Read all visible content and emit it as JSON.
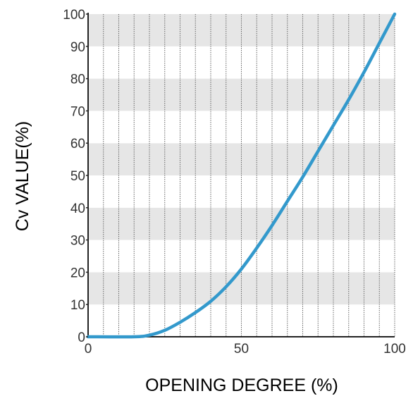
{
  "chart_data": {
    "type": "line",
    "title": "",
    "xlabel": "OPENING DEGREE (%)",
    "ylabel": "Cv VALUE(%)",
    "xlim": [
      0,
      100
    ],
    "ylim": [
      0,
      100
    ],
    "x_ticks": [
      "0",
      "50",
      "100"
    ],
    "y_ticks": [
      "0",
      "10",
      "20",
      "30",
      "40",
      "50",
      "60",
      "70",
      "80",
      "90",
      "100"
    ],
    "grid": true,
    "legend": "none",
    "series": [
      {
        "color": "#3399cc",
        "points": [
          [
            0,
            0
          ],
          [
            15,
            0
          ],
          [
            20,
            0.5
          ],
          [
            25,
            2
          ],
          [
            30,
            4.5
          ],
          [
            35,
            7.5
          ],
          [
            40,
            11
          ],
          [
            45,
            15.5
          ],
          [
            50,
            21
          ],
          [
            55,
            27.5
          ],
          [
            60,
            34.5
          ],
          [
            65,
            42
          ],
          [
            70,
            49.5
          ],
          [
            75,
            57.5
          ],
          [
            80,
            65.5
          ],
          [
            85,
            73.5
          ],
          [
            90,
            82
          ],
          [
            95,
            91
          ],
          [
            100,
            100
          ]
        ]
      }
    ],
    "colors": {
      "band": "#e6e6e6",
      "grid_line": "#666666",
      "axis": "#222222"
    }
  }
}
